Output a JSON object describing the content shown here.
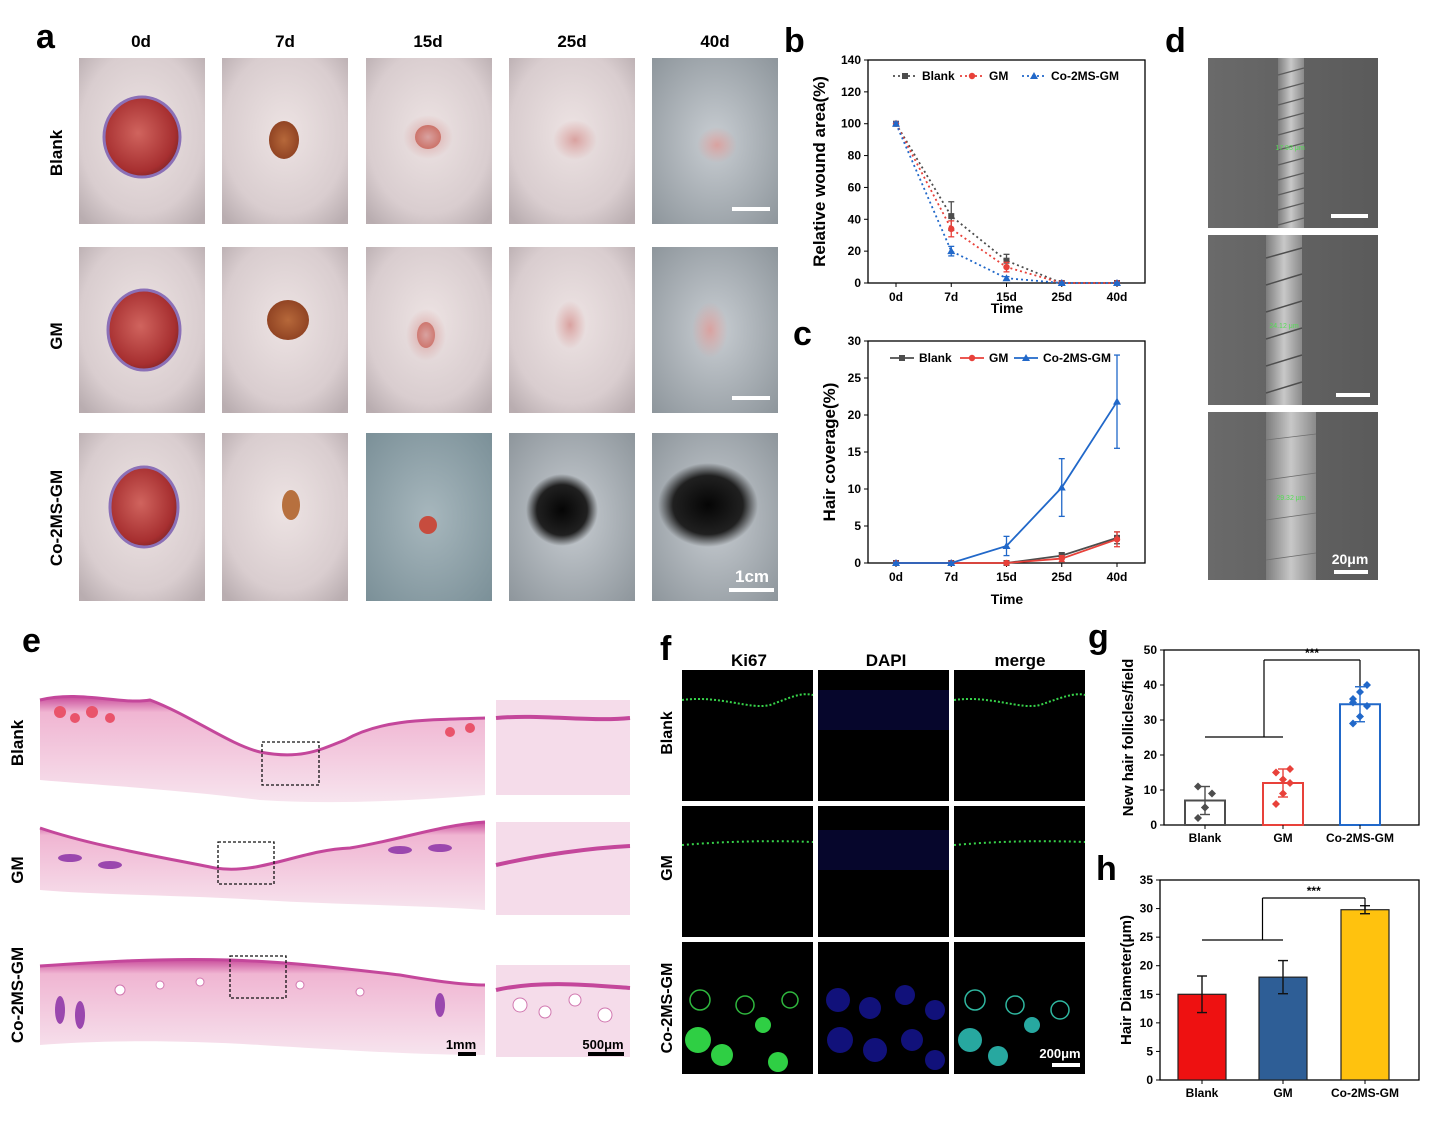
{
  "panel_letters": [
    "a",
    "b",
    "c",
    "d",
    "e",
    "f",
    "g",
    "h"
  ],
  "panel_a": {
    "days": [
      "0d",
      "7d",
      "15d",
      "25d",
      "40d"
    ],
    "groups": [
      "Blank",
      "GM",
      "Co-2MS-GM"
    ],
    "scale_label": "1cm"
  },
  "panel_d": {
    "measurements": [
      "17.93 μm",
      "24.12 μm",
      "29.32 μm"
    ],
    "scale_label": "20μm"
  },
  "panel_e": {
    "groups": [
      "Blank",
      "GM",
      "Co-2MS-GM"
    ],
    "scale_left": "1mm",
    "scale_right": "500μm"
  },
  "panel_f": {
    "channels": [
      "Ki67",
      "DAPI",
      "merge"
    ],
    "groups": [
      "Blank",
      "GM",
      "Co-2MS-GM"
    ],
    "scale_label": "200μm"
  },
  "colors": {
    "blank": "#4d4d4d",
    "gm": "#e8413a",
    "co": "#2168c9",
    "bar_blank": "#ee1111",
    "bar_gm": "#2e5e96",
    "bar_co": "#ffc20e"
  },
  "chart_data": [
    {
      "id": "b",
      "type": "line",
      "categories": [
        "0d",
        "7d",
        "15d",
        "25d",
        "40d"
      ],
      "xlabel": "Time",
      "ylabel": "Relative wound area(%)",
      "ylim": [
        0,
        140
      ],
      "yticks": [
        "0",
        "20",
        "40",
        "60",
        "80",
        "100",
        "120",
        "140"
      ],
      "line_style": "dotted",
      "legend": "top",
      "series": [
        {
          "name": "Blank",
          "values": [
            100,
            42,
            14,
            0,
            0
          ],
          "err": [
            1,
            9,
            4,
            0.5,
            0.5
          ]
        },
        {
          "name": "GM",
          "values": [
            100,
            34,
            10,
            0,
            0
          ],
          "err": [
            1,
            5,
            3,
            0.5,
            0.5
          ]
        },
        {
          "name": "Co-2MS-GM",
          "values": [
            100,
            20,
            3,
            0,
            0
          ],
          "err": [
            1,
            3,
            1,
            0.5,
            0.5
          ]
        }
      ]
    },
    {
      "id": "c",
      "type": "line",
      "categories": [
        "0d",
        "7d",
        "15d",
        "25d",
        "40d"
      ],
      "xlabel": "Time",
      "ylabel": "Hair coverage(%)",
      "ylim": [
        0,
        30
      ],
      "yticks": [
        "0",
        "5",
        "10",
        "15",
        "20",
        "25",
        "30"
      ],
      "line_style": "solid",
      "legend": "top",
      "series": [
        {
          "name": "Blank",
          "values": [
            0,
            0,
            0,
            1,
            3.4
          ],
          "err": [
            0.1,
            0.1,
            0.1,
            0.4,
            0.8
          ]
        },
        {
          "name": "GM",
          "values": [
            0,
            0,
            0,
            0.6,
            3.2
          ],
          "err": [
            0.1,
            0.1,
            0.1,
            0.4,
            1
          ]
        },
        {
          "name": "Co-2MS-GM",
          "values": [
            0,
            0,
            2.3,
            10.2,
            21.8
          ],
          "err": [
            0.1,
            0.1,
            1.3,
            3.9,
            6.3
          ]
        }
      ]
    },
    {
      "id": "g",
      "type": "bar",
      "categories": [
        "Blank",
        "GM",
        "Co-2MS-GM"
      ],
      "values": [
        7,
        12,
        34.5
      ],
      "err": [
        4,
        4,
        5
      ],
      "points": [
        [
          2,
          5,
          9,
          11,
          5
        ],
        [
          6,
          9,
          12,
          15,
          13,
          16
        ],
        [
          29,
          31,
          34,
          36,
          38,
          40,
          35
        ]
      ],
      "ylabel": "New hair follicles/field",
      "ylim": [
        0,
        50
      ],
      "yticks": [
        "0",
        "10",
        "20",
        "30",
        "40",
        "50"
      ],
      "significance": "***"
    },
    {
      "id": "h",
      "type": "bar",
      "categories": [
        "Blank",
        "GM",
        "Co-2MS-GM"
      ],
      "values": [
        15,
        18,
        29.8
      ],
      "err": [
        3.2,
        2.9,
        0.7
      ],
      "ylabel": "Hair Diameter(μm)",
      "ylim": [
        0,
        35
      ],
      "yticks": [
        "0",
        "5",
        "10",
        "15",
        "20",
        "25",
        "30",
        "35"
      ],
      "significance": "***"
    }
  ]
}
